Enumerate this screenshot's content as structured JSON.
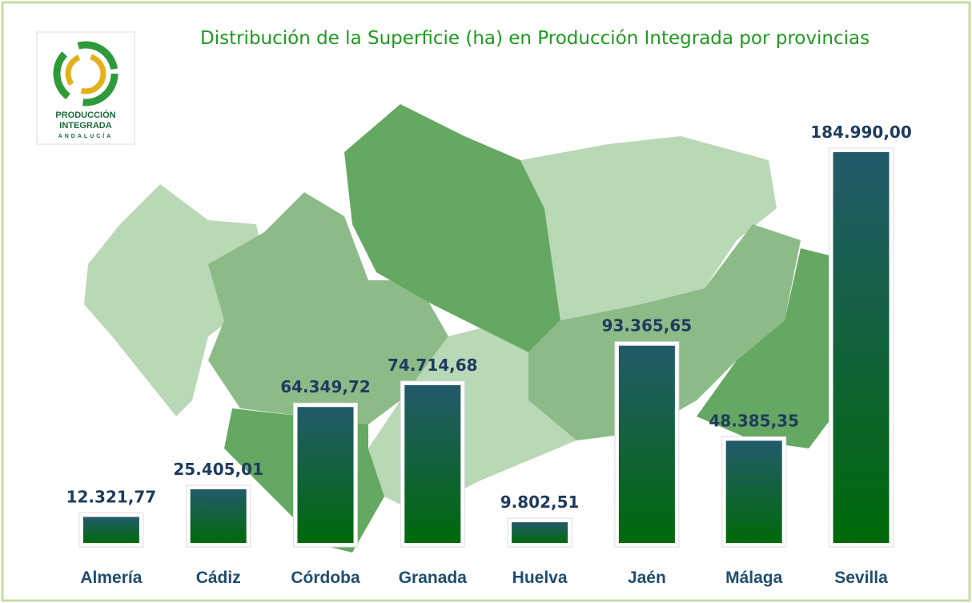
{
  "chart_data": {
    "type": "bar",
    "title": "Distribución de la Superficie (ha) en Producción Integrada por provincias",
    "logo": [
      "PRODUCCIÓN",
      "INTEGRADA",
      "ANDALUCÍA"
    ],
    "categories": [
      "Almería",
      "Cádiz",
      "Córdoba",
      "Granada",
      "Huelva",
      "Jaén",
      "Málaga",
      "Sevilla"
    ],
    "values": [
      12321.77,
      25405.01,
      64349.72,
      74714.68,
      9802.51,
      93365.65,
      48385.35,
      184990.0
    ],
    "value_labels": [
      "12.321,77",
      "25.405,01",
      "64.349,72",
      "74.714,68",
      "9.802,51",
      "93.365,65",
      "48.385,35",
      "184.990,00"
    ],
    "gradient": [
      "#235a6b",
      "#006a0a"
    ]
  }
}
